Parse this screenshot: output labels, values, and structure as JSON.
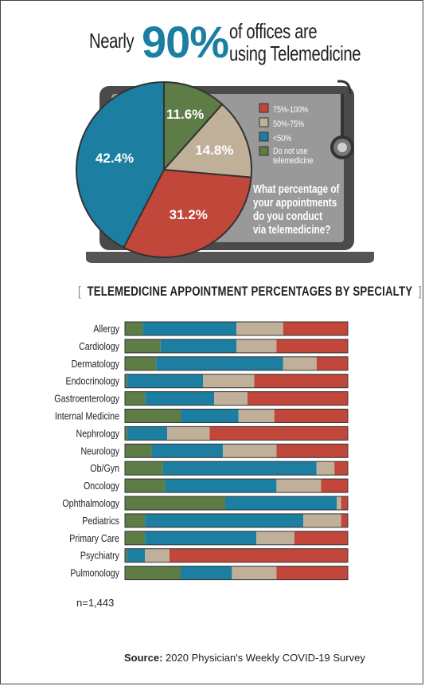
{
  "title": {
    "prefix": "Nearly",
    "highlight": "90%",
    "suffix_line1": "of offices are",
    "suffix_line2": "using Telemedicine"
  },
  "colors": {
    "r75_100": "#c1473a",
    "r50_75": "#c0b09a",
    "lt50": "#1c7ea1",
    "none": "#5e7c45",
    "screen": "#999999",
    "laptop": "#4a4a4a"
  },
  "pie_question": [
    "What percentage of",
    "your appointments",
    "do you conduct",
    "via telemedicine?"
  ],
  "chart_data": [
    {
      "type": "pie",
      "categories": [
        "75%-100%",
        "50%-75%",
        "<50%",
        "Do not use telemedicine"
      ],
      "values": [
        31.2,
        14.8,
        42.4,
        11.6
      ],
      "slice_labels": [
        "31.2%",
        "14.8%",
        "42.4%",
        "11.6%"
      ],
      "legend": [
        "75%-100%",
        "50%-75%",
        "<50%",
        "Do not use",
        "telemedicine"
      ],
      "legend_placement": "right"
    },
    {
      "type": "bar",
      "stacked": true,
      "orientation": "horizontal",
      "title": "TELEMEDICINE APPOINTMENT PERCENTAGES BY SPECIALTY",
      "categories": [
        "Allergy",
        "Cardiology",
        "Dermatology",
        "Endocrinology",
        "Gastroenterology",
        "Internal Medicine",
        "Nephrology",
        "Neurology",
        "Ob/Gyn",
        "Oncology",
        "Ophthalmology",
        "Pediatrics",
        "Primary Care",
        "Psychiatry",
        "Pulmonology"
      ],
      "series": [
        {
          "key": "none",
          "values": [
            8,
            16,
            14,
            1,
            9,
            25,
            1,
            12,
            17,
            18,
            45,
            9,
            9,
            1,
            25
          ]
        },
        {
          "key": "lt50",
          "values": [
            42,
            34,
            57,
            34,
            31,
            26,
            18,
            32,
            69,
            50,
            50,
            71,
            50,
            8,
            23
          ]
        },
        {
          "key": "r50_75",
          "values": [
            21,
            18,
            15,
            23,
            15,
            16,
            19,
            24,
            8,
            20,
            2,
            17,
            17,
            11,
            20
          ]
        },
        {
          "key": "r75_100",
          "values": [
            29,
            32,
            14,
            42,
            45,
            33,
            62,
            32,
            6,
            12,
            3,
            3,
            24,
            80,
            32
          ]
        }
      ],
      "xlim": [
        0,
        100
      ],
      "n_label": "n=1,443"
    }
  ],
  "source": {
    "label": "Source:",
    "text": "2020 Physician's Weekly COVID-19 Survey"
  }
}
